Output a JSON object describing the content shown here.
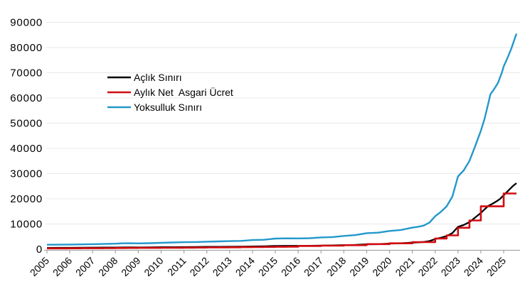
{
  "chart_data": {
    "type": "line",
    "title": "",
    "xlabel": "",
    "ylabel": "",
    "xlim": [
      2004.9,
      2025.8
    ],
    "ylim": [
      0,
      90000
    ],
    "x_end": 2025.56,
    "y_ticks": [
      0,
      10000,
      20000,
      30000,
      40000,
      50000,
      60000,
      70000,
      80000,
      90000
    ],
    "x_ticks": [
      2005,
      2006,
      2007,
      2008,
      2009,
      2010,
      2011,
      2012,
      2013,
      2014,
      2015,
      2016,
      2017,
      2018,
      2019,
      2020,
      2021,
      2022,
      2023,
      2024,
      2025
    ],
    "grid": "horizontal",
    "legend_position": "inside-upper-left",
    "series": [
      {
        "name": "Açlık Sınırı",
        "color": "#000000",
        "mode": "linear",
        "line_width": 2.3,
        "points": [
          [
            2005.0,
            545
          ],
          [
            2005.5,
            557
          ],
          [
            2006.0,
            572
          ],
          [
            2006.5,
            588
          ],
          [
            2007.0,
            610
          ],
          [
            2007.5,
            638
          ],
          [
            2008.0,
            672
          ],
          [
            2008.33,
            718
          ],
          [
            2008.67,
            728
          ],
          [
            2009.0,
            712
          ],
          [
            2009.5,
            732
          ],
          [
            2010.0,
            777
          ],
          [
            2010.5,
            817
          ],
          [
            2011.0,
            853
          ],
          [
            2011.5,
            877
          ],
          [
            2012.0,
            919
          ],
          [
            2012.5,
            949
          ],
          [
            2013.0,
            986
          ],
          [
            2013.5,
            1015
          ],
          [
            2014.0,
            1112
          ],
          [
            2014.5,
            1148
          ],
          [
            2015.0,
            1296
          ],
          [
            2015.5,
            1325
          ],
          [
            2016.0,
            1316
          ],
          [
            2016.5,
            1339
          ],
          [
            2017.0,
            1433
          ],
          [
            2017.5,
            1480
          ],
          [
            2018.0,
            1619
          ],
          [
            2018.5,
            1725
          ],
          [
            2019.0,
            1957
          ],
          [
            2019.5,
            2015
          ],
          [
            2020.0,
            2219
          ],
          [
            2020.5,
            2345
          ],
          [
            2021.0,
            2625
          ],
          [
            2021.25,
            2730
          ],
          [
            2021.5,
            2880
          ],
          [
            2021.75,
            3250
          ],
          [
            2022.0,
            4013
          ],
          [
            2022.25,
            4550
          ],
          [
            2022.5,
            5225
          ],
          [
            2022.75,
            6400
          ],
          [
            2023.0,
            8864
          ],
          [
            2023.25,
            9600
          ],
          [
            2023.5,
            10760
          ],
          [
            2023.75,
            12550
          ],
          [
            2024.0,
            14400
          ],
          [
            2024.17,
            15900
          ],
          [
            2024.33,
            17200
          ],
          [
            2024.5,
            18000
          ],
          [
            2024.67,
            18900
          ],
          [
            2024.83,
            19900
          ],
          [
            2025.0,
            21400
          ],
          [
            2025.08,
            22150
          ],
          [
            2025.25,
            23700
          ],
          [
            2025.42,
            25200
          ],
          [
            2025.56,
            26200
          ]
        ]
      },
      {
        "name": "Aylık Net  Asgari Ücret",
        "color": "#d20b10",
        "mode": "step-post",
        "line_width": 2.6,
        "points": [
          [
            2005.0,
            350
          ],
          [
            2006.0,
            380
          ],
          [
            2006.5,
            403
          ],
          [
            2007.5,
            419
          ],
          [
            2008.0,
            482
          ],
          [
            2008.5,
            503
          ],
          [
            2009.0,
            527
          ],
          [
            2009.5,
            546
          ],
          [
            2010.0,
            577
          ],
          [
            2010.5,
            599
          ],
          [
            2011.0,
            630
          ],
          [
            2011.5,
            659
          ],
          [
            2012.0,
            701
          ],
          [
            2012.5,
            740
          ],
          [
            2013.0,
            773
          ],
          [
            2013.5,
            804
          ],
          [
            2014.0,
            846
          ],
          [
            2014.5,
            891
          ],
          [
            2015.0,
            949
          ],
          [
            2015.5,
            1001
          ],
          [
            2016.0,
            1301
          ],
          [
            2017.0,
            1404
          ],
          [
            2018.0,
            1603
          ],
          [
            2019.0,
            2021
          ],
          [
            2020.0,
            2325
          ],
          [
            2021.0,
            2826
          ],
          [
            2022.0,
            4253
          ],
          [
            2022.5,
            5500
          ],
          [
            2023.0,
            8507
          ],
          [
            2023.5,
            11402
          ],
          [
            2024.0,
            17002
          ],
          [
            2025.0,
            22104
          ]
        ]
      },
      {
        "name": "Yoksulluk Sınırı",
        "color": "#2398cb",
        "mode": "linear",
        "line_width": 2.4,
        "points": [
          [
            2005.0,
            1776
          ],
          [
            2005.5,
            1815
          ],
          [
            2006.0,
            1863
          ],
          [
            2006.5,
            1915
          ],
          [
            2007.0,
            1987
          ],
          [
            2007.5,
            2078
          ],
          [
            2008.0,
            2189
          ],
          [
            2008.33,
            2339
          ],
          [
            2008.67,
            2372
          ],
          [
            2009.0,
            2319
          ],
          [
            2009.5,
            2384
          ],
          [
            2010.0,
            2532
          ],
          [
            2010.5,
            2662
          ],
          [
            2011.0,
            2779
          ],
          [
            2011.5,
            2857
          ],
          [
            2012.0,
            2994
          ],
          [
            2012.5,
            3091
          ],
          [
            2013.0,
            3212
          ],
          [
            2013.5,
            3306
          ],
          [
            2014.0,
            3622
          ],
          [
            2014.5,
            3739
          ],
          [
            2015.0,
            4222
          ],
          [
            2015.5,
            4316
          ],
          [
            2016.0,
            4287
          ],
          [
            2016.5,
            4362
          ],
          [
            2017.0,
            4668
          ],
          [
            2017.5,
            4821
          ],
          [
            2018.0,
            5274
          ],
          [
            2018.5,
            5619
          ],
          [
            2019.0,
            6375
          ],
          [
            2019.5,
            6563
          ],
          [
            2020.0,
            7229
          ],
          [
            2020.5,
            7639
          ],
          [
            2021.0,
            8550
          ],
          [
            2021.25,
            8892
          ],
          [
            2021.5,
            9380
          ],
          [
            2021.75,
            10585
          ],
          [
            2022.0,
            13073
          ],
          [
            2022.25,
            14820
          ],
          [
            2022.5,
            17020
          ],
          [
            2022.75,
            20846
          ],
          [
            2023.0,
            28875
          ],
          [
            2023.25,
            31270
          ],
          [
            2023.5,
            35050
          ],
          [
            2023.75,
            40880
          ],
          [
            2024.0,
            47000
          ],
          [
            2024.17,
            52000
          ],
          [
            2024.33,
            58000
          ],
          [
            2024.42,
            61500
          ],
          [
            2024.58,
            63500
          ],
          [
            2024.75,
            66000
          ],
          [
            2024.92,
            70000
          ],
          [
            2025.0,
            72500
          ],
          [
            2025.17,
            76000
          ],
          [
            2025.33,
            79500
          ],
          [
            2025.5,
            84000
          ],
          [
            2025.56,
            85500
          ]
        ]
      }
    ]
  },
  "colors": {
    "background": "#ffffff",
    "gridline": "#e8e8e8",
    "axis": "#a6a6a6",
    "tick": "#a6a6a6",
    "label_text": "#000000"
  }
}
